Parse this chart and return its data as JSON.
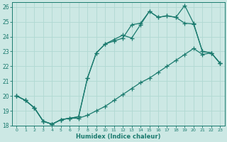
{
  "xlabel": "Humidex (Indice chaleur)",
  "background_color": "#cce8e4",
  "grid_color": "#b0d8d2",
  "line_color": "#1a7a6e",
  "xlim": [
    -0.5,
    23.5
  ],
  "ylim": [
    18,
    26.3
  ],
  "yticks": [
    18,
    19,
    20,
    21,
    22,
    23,
    24,
    25,
    26
  ],
  "xticks": [
    0,
    1,
    2,
    3,
    4,
    5,
    6,
    7,
    8,
    9,
    10,
    11,
    12,
    13,
    14,
    15,
    16,
    17,
    18,
    19,
    20,
    21,
    22,
    23
  ],
  "line1_x": [
    0,
    1,
    2,
    3,
    4,
    5,
    6,
    7,
    8,
    9,
    10,
    11,
    12,
    13,
    14,
    15,
    16,
    17,
    18,
    19,
    20,
    21,
    22,
    23
  ],
  "line1_y": [
    20.0,
    19.7,
    19.2,
    18.3,
    18.1,
    18.4,
    18.5,
    18.5,
    18.7,
    19.0,
    19.3,
    19.7,
    20.1,
    20.5,
    20.9,
    21.2,
    21.6,
    22.0,
    22.4,
    22.8,
    23.2,
    22.8,
    22.9,
    22.2
  ],
  "line2_x": [
    0,
    1,
    2,
    3,
    4,
    5,
    6,
    7,
    8,
    9,
    10,
    11,
    12,
    13,
    14,
    15,
    16,
    17,
    18,
    19,
    20,
    21,
    22,
    23
  ],
  "line2_y": [
    20.0,
    19.7,
    19.2,
    18.3,
    18.1,
    18.4,
    18.5,
    18.6,
    21.2,
    22.9,
    23.5,
    23.8,
    24.1,
    23.9,
    24.8,
    25.7,
    25.3,
    25.4,
    25.3,
    26.1,
    24.9,
    23.0,
    22.9,
    22.2
  ],
  "line3_x": [
    0,
    1,
    2,
    3,
    4,
    5,
    6,
    7,
    8,
    9,
    10,
    11,
    12,
    13,
    14,
    15,
    16,
    17,
    18,
    19,
    20,
    21,
    22,
    23
  ],
  "line3_y": [
    20.0,
    19.7,
    19.2,
    18.3,
    18.1,
    18.4,
    18.5,
    18.6,
    21.2,
    22.9,
    23.5,
    23.7,
    23.9,
    24.8,
    24.9,
    25.7,
    25.3,
    25.4,
    25.3,
    24.9,
    24.85,
    23.0,
    22.9,
    22.2
  ]
}
